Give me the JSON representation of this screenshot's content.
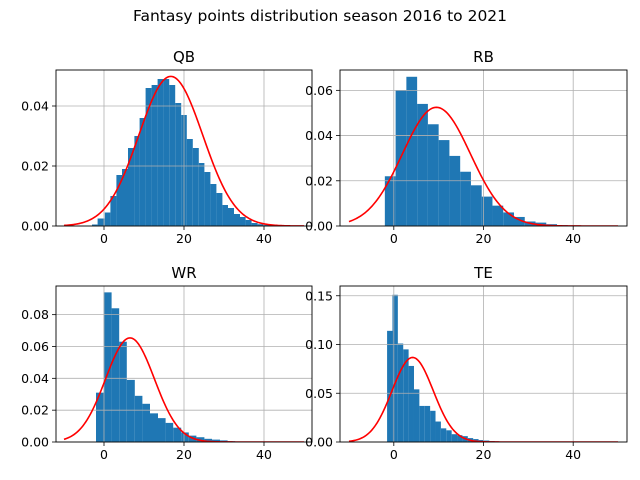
{
  "figure": {
    "suptitle": "Fantasy points distribution season 2016 to 2021"
  },
  "colors": {
    "bar": "#1f77b4",
    "curve": "#ff0000",
    "grid": "#b0b0b0",
    "axis": "#000000"
  },
  "chart_data": [
    {
      "type": "bar",
      "title": "QB",
      "xlim": [
        -12,
        52
      ],
      "ylim": [
        0,
        0.052
      ],
      "xticks": [
        0,
        20,
        40
      ],
      "yticks": [
        0.0,
        0.02,
        0.04
      ],
      "ytick_labels": [
        "0.00",
        "0.02",
        "0.04"
      ],
      "grid": true,
      "histogram": {
        "bin_edges": [
          -3,
          -1.6,
          0.2,
          1.6,
          3.1,
          4.5,
          6.0,
          7.6,
          8.9,
          10.4,
          11.9,
          13.4,
          14.9,
          16.3,
          17.8,
          19.3,
          20.7,
          22.2,
          23.7,
          25.1,
          26.6,
          28.1,
          29.6,
          31.0,
          32.5,
          34.0,
          35.4,
          36.9,
          38.4,
          39.8,
          41.3,
          42.8,
          44.3
        ],
        "values": [
          0.0005,
          0.0025,
          0.0045,
          0.01,
          0.017,
          0.019,
          0.026,
          0.03,
          0.036,
          0.046,
          0.047,
          0.049,
          0.049,
          0.047,
          0.041,
          0.037,
          0.029,
          0.026,
          0.021,
          0.018,
          0.014,
          0.011,
          0.007,
          0.006,
          0.004,
          0.003,
          0.002,
          0.001,
          0.0006,
          0.0004,
          0.0002,
          0.0001
        ]
      },
      "normal_fit": {
        "mean": 16.7,
        "std": 8.0,
        "x_range": [
          -10,
          50
        ]
      }
    },
    {
      "type": "bar",
      "title": "RB",
      "xlim": [
        -12,
        52
      ],
      "ylim": [
        0,
        0.069
      ],
      "xticks": [
        0,
        20,
        40
      ],
      "yticks": [
        0.0,
        0.02,
        0.04,
        0.06
      ],
      "ytick_labels": [
        "0.00",
        "0.02",
        "0.04",
        "0.06"
      ],
      "grid": true,
      "histogram": {
        "bin_edges": [
          -2.0,
          0.4,
          2.8,
          5.2,
          7.6,
          10.0,
          12.4,
          14.8,
          17.2,
          19.6,
          22.0,
          24.4,
          26.8,
          29.2,
          31.6,
          34.0,
          36.4,
          38.8,
          41.2
        ],
        "values": [
          0.022,
          0.06,
          0.066,
          0.054,
          0.045,
          0.038,
          0.031,
          0.024,
          0.018,
          0.013,
          0.009,
          0.006,
          0.004,
          0.002,
          0.0015,
          0.0008,
          0.0004,
          0.0002
        ]
      },
      "normal_fit": {
        "mean": 9.5,
        "std": 7.6,
        "x_range": [
          -10,
          50
        ]
      }
    },
    {
      "type": "bar",
      "title": "WR",
      "xlim": [
        -12,
        52
      ],
      "ylim": [
        0,
        0.098
      ],
      "xticks": [
        0,
        20,
        40
      ],
      "yticks": [
        0.0,
        0.02,
        0.04,
        0.06,
        0.08
      ],
      "ytick_labels": [
        "0.00",
        "0.02",
        "0.04",
        "0.06",
        "0.08"
      ],
      "grid": true,
      "histogram": {
        "bin_edges": [
          -2.0,
          -0.1,
          1.9,
          3.8,
          5.7,
          7.7,
          9.6,
          11.5,
          13.5,
          15.4,
          17.3,
          19.3,
          21.2,
          23.1,
          25.1,
          27.0,
          29.0,
          30.9,
          32.8,
          34.8,
          36.7
        ],
        "values": [
          0.031,
          0.094,
          0.084,
          0.063,
          0.039,
          0.029,
          0.024,
          0.018,
          0.015,
          0.012,
          0.009,
          0.006,
          0.004,
          0.003,
          0.002,
          0.0015,
          0.001,
          0.0005,
          0.0003,
          0.0002
        ]
      },
      "normal_fit": {
        "mean": 6.5,
        "std": 6.1,
        "x_range": [
          -10,
          50
        ]
      }
    },
    {
      "type": "bar",
      "title": "TE",
      "xlim": [
        -12,
        52
      ],
      "ylim": [
        0,
        0.16
      ],
      "xticks": [
        0,
        20,
        40
      ],
      "yticks": [
        0.0,
        0.05,
        0.1,
        0.15
      ],
      "ytick_labels": [
        "0.00",
        "0.05",
        "0.10",
        "0.15"
      ],
      "grid": true,
      "histogram": {
        "bin_edges": [
          -1.5,
          -0.3,
          0.9,
          2.1,
          3.3,
          4.5,
          5.7,
          6.9,
          8.1,
          9.3,
          10.5,
          11.7,
          12.9,
          14.1,
          15.3,
          16.5,
          17.7,
          18.9,
          20.1,
          21.3,
          22.5,
          23.7,
          24.9,
          26.1
        ],
        "values": [
          0.114,
          0.151,
          0.101,
          0.095,
          0.078,
          0.054,
          0.037,
          0.037,
          0.032,
          0.021,
          0.014,
          0.012,
          0.008,
          0.007,
          0.006,
          0.004,
          0.003,
          0.002,
          0.0015,
          0.001,
          0.0006,
          0.0004,
          0.0002
        ]
      },
      "normal_fit": {
        "mean": 4.2,
        "std": 4.6,
        "x_range": [
          -10,
          50
        ]
      }
    }
  ]
}
